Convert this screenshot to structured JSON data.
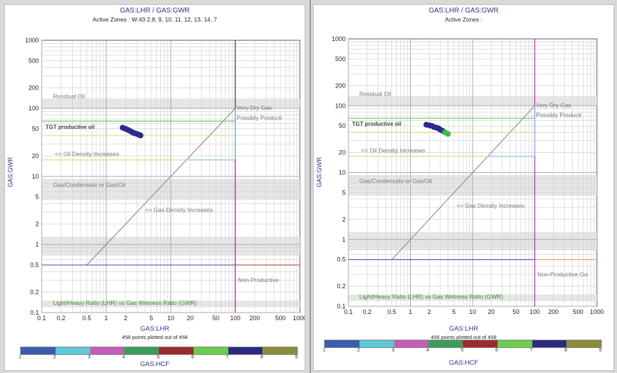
{
  "colors": {
    "title": "#3a2c8a",
    "grid_major": "#a8a8a8",
    "grid_minor": "#d2d2d2",
    "zone_band": "#e6e6e6",
    "diag_line": "#8a8a8a",
    "green_line": "#5cc45c",
    "yellow_line": "#d8d878",
    "cyan_line": "#7fc8e8",
    "purple_line": "#5050b0",
    "magenta_line": "#c040c0",
    "red_line": "#d03030",
    "orange_line": "#f0a040",
    "cluster_dark": "#2a2a90",
    "cluster_green": "#3cb84a",
    "legend_text_green": "#3a8a2a"
  },
  "colorbar": {
    "colors": [
      "#3c5cb0",
      "#5cc8d8",
      "#c45cb8",
      "#3c9c5c",
      "#9a2c2c",
      "#6ccc4c",
      "#2a2a80",
      "#8c8c3c"
    ],
    "ticks": [
      "1",
      "2",
      "3",
      "4",
      "5",
      "6",
      "7",
      "8",
      "9"
    ],
    "label": "GAS:HCF"
  },
  "panels": [
    {
      "title": "GAS:LHR / GAS:GWR",
      "subtitle": "Active Zones : W:43 2,8, 9, 10, 11, 12, 13, 14, 7",
      "xlabel": "GAS:LHR",
      "ylabel": "GAS:GWR",
      "count_text": "458 points plotted out of 458",
      "x_ticks": [
        "0.1",
        "0.2",
        "0.5",
        "1",
        "2",
        "5",
        "10",
        "20",
        "50",
        "100",
        "200",
        "500",
        "1000"
      ],
      "y_ticks": [
        "0.1",
        "0.2",
        "0.5",
        "1",
        "2",
        "5",
        "10",
        "20",
        "50",
        "100",
        "200",
        "500",
        "1000"
      ],
      "labels": {
        "residual_oil": "Residual Oil",
        "tgt_productive_oil": "TGT productive oil",
        "oil_density": "<= Oil Density Increases",
        "gas_condensate": "Gas/Condensate or Gas/Oil",
        "gas_density": "<= Gas Density Increases",
        "very_dry_gas": "Very Dry Gas",
        "possibly_productive": "Possibly Producti",
        "non_productive": "Non-Productive",
        "chart_caption": "Light/Heavy Ratio (LHR) vs Gas Wetness Ratio (GWR)"
      }
    },
    {
      "title": "GAS:LHR / GAS:GWR",
      "subtitle": "Active Zones :",
      "xlabel": "GAS:LHR",
      "ylabel": "GAS:GWR",
      "count_text": "458 points plotted out of 458",
      "x_ticks": [
        "0.1",
        "0.2",
        "0.5",
        "1",
        "2",
        "5",
        "10",
        "20",
        "50",
        "100",
        "200",
        "500",
        "1000"
      ],
      "y_ticks": [
        "0.1",
        "0.2",
        "0.5",
        "1",
        "2",
        "5",
        "10",
        "20",
        "50",
        "100",
        "200",
        "500",
        "1000"
      ],
      "labels": {
        "residual_oil": "Residual Oil",
        "tgt_productive_oil": "TGT productive oil",
        "oil_density": "<= Oil Density Increases",
        "gas_condensate": "Gas/Condensate or Gas/Oil",
        "gas_density": "<= Gas Density Increases",
        "very_dry_gas": "Very Dry Gas",
        "possibly_productive": "Possibly Producti",
        "non_productive": "Non-Productive Ga",
        "chart_caption": "Light/Heavy Ratio (LHR) vs Gas Wetness Ratio (GWR)"
      }
    }
  ],
  "chart_data": [
    {
      "type": "scatter",
      "title": "GAS:LHR / GAS:GWR",
      "xlabel": "GAS:LHR",
      "ylabel": "GAS:GWR",
      "xscale": "log",
      "yscale": "log",
      "xlim": [
        0.1,
        1000
      ],
      "ylim": [
        0.1,
        1000
      ],
      "grid": true,
      "reference_lines": [
        {
          "type": "diagonal",
          "from": [
            0.5,
            0.5
          ],
          "to": [
            100,
            100
          ]
        },
        {
          "type": "horizontal",
          "y": 65,
          "x_range": [
            0.1,
            100
          ]
        },
        {
          "type": "horizontal",
          "y": 40,
          "x_range": [
            0.1,
            100
          ]
        },
        {
          "type": "horizontal",
          "y": 17.5,
          "x_range": [
            0.1,
            100
          ]
        },
        {
          "type": "horizontal",
          "y": 17.5,
          "x_range": [
            17.5,
            100
          ]
        },
        {
          "type": "horizontal",
          "y": 0.5,
          "x_range": [
            0.1,
            100
          ]
        },
        {
          "type": "horizontal",
          "y": 0.5,
          "x_range": [
            100,
            1000
          ]
        },
        {
          "type": "vertical",
          "x": 100,
          "y_range": [
            0.1,
            1000
          ]
        },
        {
          "type": "vertical",
          "x": 100,
          "y_range": [
            17.5,
            100
          ]
        }
      ],
      "series": [
        {
          "values": [
            [
              1.8,
              52
            ],
            [
              2.0,
              50
            ],
            [
              2.2,
              48
            ],
            [
              2.4,
              46
            ],
            [
              2.6,
              44
            ],
            [
              2.8,
              43
            ],
            [
              3.0,
              42
            ],
            [
              3.2,
              41
            ],
            [
              3.4,
              40
            ]
          ]
        }
      ]
    },
    {
      "type": "scatter",
      "title": "GAS:LHR / GAS:GWR",
      "xlabel": "GAS:LHR",
      "ylabel": "GAS:GWR",
      "xscale": "log",
      "yscale": "log",
      "xlim": [
        0.1,
        1000
      ],
      "ylim": [
        0.1,
        1000
      ],
      "grid": true,
      "reference_lines": [
        {
          "type": "diagonal",
          "from": [
            0.5,
            0.5
          ],
          "to": [
            100,
            100
          ]
        },
        {
          "type": "horizontal",
          "y": 65,
          "x_range": [
            0.1,
            100
          ]
        },
        {
          "type": "horizontal",
          "y": 40,
          "x_range": [
            0.1,
            100
          ]
        },
        {
          "type": "horizontal",
          "y": 17.5,
          "x_range": [
            0.1,
            100
          ]
        },
        {
          "type": "horizontal",
          "y": 17.5,
          "x_range": [
            17.5,
            100
          ]
        },
        {
          "type": "horizontal",
          "y": 0.5,
          "x_range": [
            0.1,
            100
          ]
        },
        {
          "type": "horizontal",
          "y": 0.5,
          "x_range": [
            100,
            1000
          ]
        },
        {
          "type": "vertical",
          "x": 100,
          "y_range": [
            0.1,
            1000
          ]
        },
        {
          "type": "vertical",
          "x": 100,
          "y_range": [
            17.5,
            100
          ]
        }
      ],
      "series": [
        {
          "values": [
            [
              1.8,
              52
            ],
            [
              2.0,
              51
            ],
            [
              2.2,
              50
            ],
            [
              2.4,
              48
            ],
            [
              2.6,
              47
            ],
            [
              2.8,
              46
            ],
            [
              3.0,
              44
            ],
            [
              3.3,
              42
            ],
            [
              3.6,
              40
            ],
            [
              4.0,
              38
            ]
          ]
        }
      ]
    }
  ]
}
